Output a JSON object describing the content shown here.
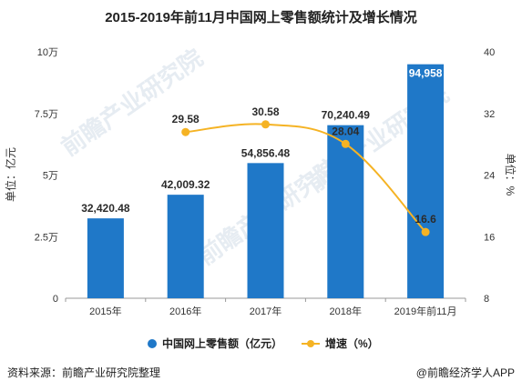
{
  "title": "2015-2019年前11月中国网上零售额统计及增长情况",
  "chart_data": {
    "type": "bar+line",
    "categories": [
      "2015年",
      "2016年",
      "2017年",
      "2018年",
      "2019年前11月"
    ],
    "series": [
      {
        "name": "中国网上零售额（亿元）",
        "type": "bar",
        "axis": "left",
        "values": [
          32420.48,
          42009.32,
          54856.48,
          70240.49,
          94958
        ],
        "labels": [
          "32,420.48",
          "42,009.32",
          "54,856.48",
          "70,240.49",
          "94,958"
        ],
        "color": "#1f78c8"
      },
      {
        "name": "增速（%）",
        "type": "line",
        "axis": "right",
        "values": [
          null,
          29.58,
          30.58,
          28.04,
          16.6
        ],
        "labels": [
          "",
          "29.58",
          "30.58",
          "28.04",
          "16.6"
        ],
        "color": "#f5b324"
      }
    ],
    "y_left": {
      "label": "单位：亿元",
      "ylim": [
        0,
        100000
      ],
      "ticks": [
        0,
        25000,
        50000,
        75000,
        100000
      ],
      "tick_labels": [
        "0",
        "2.5万",
        "5万",
        "7.5万",
        "10万"
      ]
    },
    "y_right": {
      "label": "单位：%",
      "ylim": [
        8,
        40
      ],
      "ticks": [
        8,
        16,
        24,
        32,
        40
      ],
      "tick_labels": [
        "8",
        "16",
        "24",
        "32",
        "40"
      ]
    },
    "legend_placement": "bottom-center",
    "grid": false
  },
  "footer": {
    "source": "资料来源：前瞻产业研究院整理",
    "brand": "@前瞻经济学人APP"
  },
  "watermark": "前瞻产业研究院"
}
